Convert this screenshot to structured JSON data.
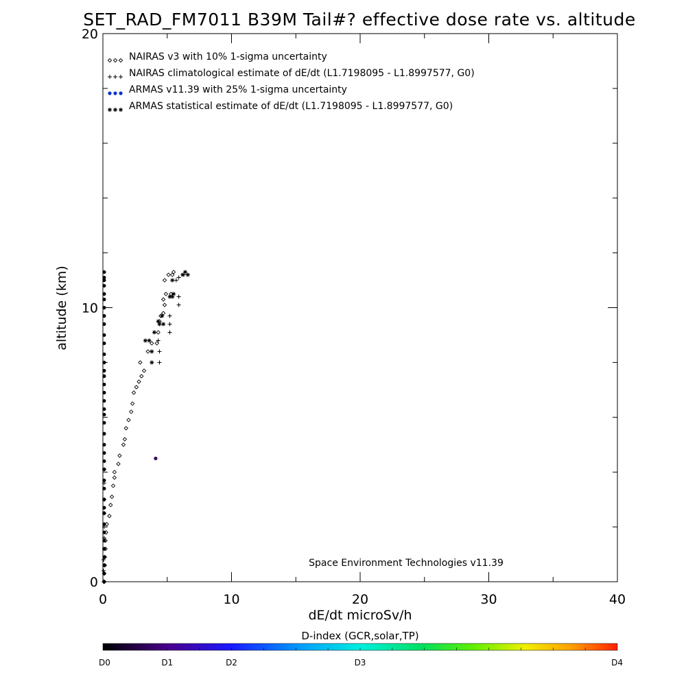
{
  "chart_data": {
    "type": "scatter",
    "title": "SET_RAD_FM7011  B39M Tail#? effective dose rate vs. altitude",
    "xlabel": "dE/dt microSv/h",
    "ylabel": "altitude (km)",
    "xlim": [
      0,
      40
    ],
    "ylim": [
      0,
      20
    ],
    "x_ticks": [
      0,
      10,
      20,
      30,
      40
    ],
    "y_ticks": [
      0,
      10,
      20
    ],
    "legend_position": "top-left",
    "credit": "Space Environment Technologies v11.39",
    "series": [
      {
        "name": "NAIRAS v3 with 10% 1-sigma uncertainty",
        "marker": "diamond",
        "color": "#000000",
        "points": [
          [
            0.1,
            0.0
          ],
          [
            0.1,
            0.3
          ],
          [
            0.15,
            0.6
          ],
          [
            0.15,
            0.9
          ],
          [
            0.2,
            1.2
          ],
          [
            0.2,
            1.5
          ],
          [
            0.25,
            1.8
          ],
          [
            0.3,
            2.1
          ],
          [
            0.5,
            2.4
          ],
          [
            0.6,
            2.8
          ],
          [
            0.7,
            3.1
          ],
          [
            0.8,
            3.5
          ],
          [
            0.9,
            3.8
          ],
          [
            0.9,
            4.0
          ],
          [
            1.2,
            4.3
          ],
          [
            1.3,
            4.6
          ],
          [
            1.6,
            5.0
          ],
          [
            1.7,
            5.2
          ],
          [
            1.8,
            5.6
          ],
          [
            2.0,
            5.9
          ],
          [
            2.2,
            6.2
          ],
          [
            2.3,
            6.5
          ],
          [
            2.4,
            6.9
          ],
          [
            2.6,
            7.1
          ],
          [
            2.8,
            7.3
          ],
          [
            3.0,
            7.5
          ],
          [
            3.2,
            7.7
          ],
          [
            2.9,
            8.0
          ],
          [
            3.5,
            8.4
          ],
          [
            3.8,
            8.7
          ],
          [
            4.2,
            8.7
          ],
          [
            4.3,
            9.1
          ],
          [
            4.4,
            9.5
          ],
          [
            4.5,
            9.7
          ],
          [
            4.7,
            9.8
          ],
          [
            4.8,
            10.1
          ],
          [
            4.7,
            10.3
          ],
          [
            4.9,
            10.5
          ],
          [
            5.3,
            10.5
          ],
          [
            4.8,
            11.0
          ],
          [
            5.1,
            11.2
          ],
          [
            5.4,
            11.2
          ],
          [
            5.5,
            11.3
          ]
        ]
      },
      {
        "name": "NAIRAS climatological estimate of dE/dt (L1.7198095 - L1.8997577, G0)",
        "marker": "plus",
        "color": "#000000",
        "points": [
          [
            0.05,
            0.0
          ],
          [
            0.05,
            0.4
          ],
          [
            0.05,
            0.8
          ],
          [
            0.1,
            1.2
          ],
          [
            0.1,
            1.6
          ],
          [
            0.1,
            2.0
          ],
          [
            0.1,
            2.5
          ],
          [
            0.1,
            3.0
          ],
          [
            0.1,
            3.6
          ],
          [
            0.1,
            4.1
          ],
          [
            4.4,
            8.0
          ],
          [
            4.4,
            8.4
          ],
          [
            4.3,
            8.8
          ],
          [
            5.2,
            9.1
          ],
          [
            5.2,
            9.4
          ],
          [
            5.2,
            9.7
          ],
          [
            5.9,
            10.1
          ],
          [
            5.9,
            10.4
          ],
          [
            5.7,
            11.0
          ],
          [
            5.9,
            11.1
          ],
          [
            6.3,
            11.2
          ]
        ]
      },
      {
        "name": "ARMAS v11.39 with 25% 1-sigma uncertainty",
        "marker": "dot",
        "color": "#0b2fd0",
        "points": [
          [
            0.1,
            0.0
          ],
          [
            0.1,
            0.3
          ],
          [
            0.1,
            0.6
          ],
          [
            0.1,
            0.9
          ],
          [
            0.1,
            1.2
          ],
          [
            0.1,
            1.5
          ],
          [
            0.1,
            1.8
          ],
          [
            0.1,
            2.1
          ],
          [
            0.1,
            2.5
          ],
          [
            0.1,
            2.7
          ],
          [
            0.1,
            3.0
          ],
          [
            0.1,
            3.4
          ],
          [
            0.1,
            3.7
          ],
          [
            0.1,
            4.1
          ],
          [
            0.1,
            4.4
          ],
          [
            0.1,
            4.7
          ],
          [
            0.1,
            5.0
          ],
          [
            0.1,
            5.4
          ],
          [
            0.1,
            5.8
          ],
          [
            0.1,
            6.1
          ],
          [
            0.1,
            6.3
          ],
          [
            0.1,
            6.6
          ],
          [
            0.1,
            6.9
          ],
          [
            0.1,
            7.2
          ],
          [
            0.1,
            7.5
          ],
          [
            0.1,
            7.7
          ],
          [
            0.1,
            8.0
          ],
          [
            0.1,
            8.3
          ],
          [
            0.1,
            8.7
          ],
          [
            0.1,
            9.0
          ],
          [
            0.1,
            9.4
          ],
          [
            0.1,
            9.7
          ],
          [
            0.1,
            10.0
          ],
          [
            0.1,
            10.3
          ],
          [
            0.1,
            10.5
          ],
          [
            0.1,
            10.8
          ],
          [
            0.1,
            11.0
          ],
          [
            0.1,
            11.1
          ],
          [
            0.1,
            11.3
          ],
          [
            4.1,
            4.5
          ]
        ]
      },
      {
        "name": "ARMAS statistical estimate of dE/dt (L1.7198095 - L1.8997577, G0)",
        "marker": "star",
        "color": "#000000",
        "points": [
          [
            3.8,
            8.0
          ],
          [
            3.8,
            8.4
          ],
          [
            3.6,
            8.8
          ],
          [
            3.3,
            8.8
          ],
          [
            4.0,
            9.1
          ],
          [
            4.4,
            9.4
          ],
          [
            4.3,
            9.5
          ],
          [
            4.7,
            9.4
          ],
          [
            4.6,
            9.7
          ],
          [
            5.2,
            10.4
          ],
          [
            5.4,
            10.4
          ],
          [
            5.5,
            10.5
          ],
          [
            5.4,
            11.0
          ],
          [
            6.2,
            11.2
          ],
          [
            6.4,
            11.3
          ],
          [
            6.6,
            11.2
          ]
        ]
      }
    ],
    "colorbar": {
      "title": "D-index (GCR,solar,TP)",
      "tick_labels": [
        "D0",
        "D1",
        "D2",
        "D3",
        "D4"
      ],
      "tick_positions": [
        0,
        0.125,
        0.25,
        0.5,
        1.0
      ]
    }
  }
}
